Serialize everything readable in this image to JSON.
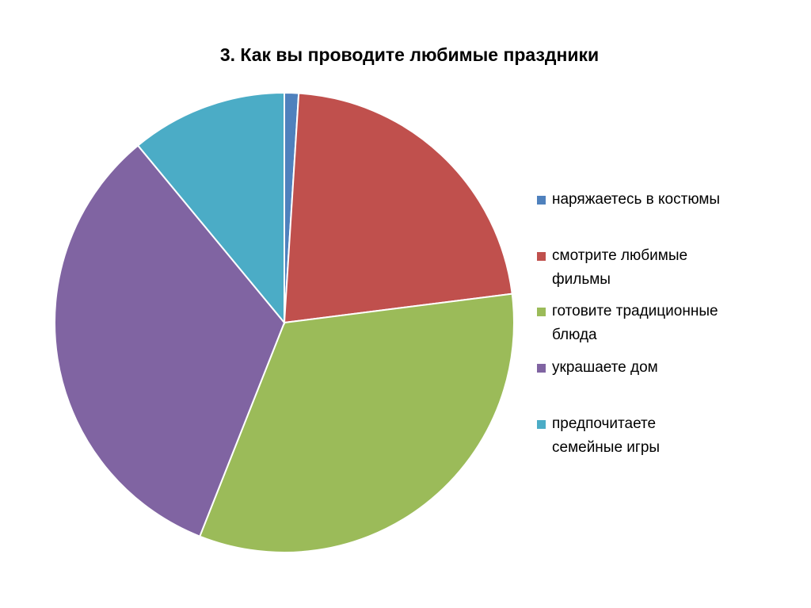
{
  "chart_data": {
    "type": "pie",
    "title": "3.  Как вы проводите любимые праздники",
    "legend_position": "right",
    "start_angle": "12 o'clock, clockwise",
    "series": [
      {
        "name": "наряжаетесь в костюмы",
        "value": 1,
        "color": "#4F81BD"
      },
      {
        "name": "смотрите любимые фильмы",
        "value": 22,
        "color": "#C0504D"
      },
      {
        "name": "готовите традиционные блюда",
        "value": 33,
        "color": "#9BBB59"
      },
      {
        "name": "украшаете дом",
        "value": 33,
        "color": "#8064A2"
      },
      {
        "name": "предпочитаете семейные игры",
        "value": 11,
        "color": "#4BACC6"
      }
    ]
  }
}
